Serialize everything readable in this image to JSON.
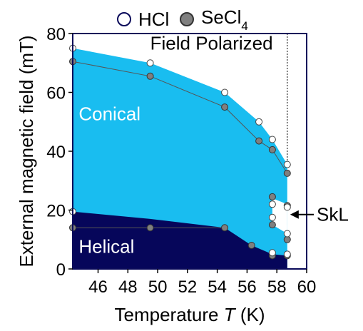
{
  "chart_data": {
    "type": "scatter",
    "xlabel": "Temperature T (K)",
    "ylabel": "External magnetic field (mT)",
    "xlabel_parts": {
      "pre": "Temperature ",
      "var": "T",
      "post": " (K)"
    },
    "xlim": [
      44.3,
      60
    ],
    "ylim": [
      0,
      80
    ],
    "xticks": [
      "46",
      "48",
      "50",
      "52",
      "54",
      "56",
      "58",
      "60"
    ],
    "xtick_values": [
      46,
      48,
      50,
      52,
      54,
      56,
      58,
      60
    ],
    "yticks": [
      "0",
      "20",
      "40",
      "60",
      "80"
    ],
    "ytick_values": [
      0,
      20,
      40,
      60,
      80
    ],
    "legend": {
      "items": [
        {
          "name": "HCl",
          "color": "#ffffff"
        },
        {
          "name": "SeCl4",
          "color": "#808080"
        }
      ],
      "placement": "top"
    },
    "legend_text": {
      "hcl": "HCl",
      "secl_base": "SeCl",
      "secl_sub": "4"
    },
    "region_labels": {
      "field_polarized": "Field Polarized",
      "conical": "Conical",
      "helical": "Helical",
      "skl": "SkL"
    },
    "colors": {
      "conical": "#19bdf0",
      "helical": "#06065a",
      "hcl_marker": "#ffffff",
      "secl4_marker": "#808080",
      "frame": "#0a0a5a"
    },
    "series": [
      {
        "name": "HCl",
        "points": [
          {
            "x": 44.3,
            "y": 75
          },
          {
            "x": 49.5,
            "y": 70
          },
          {
            "x": 54.5,
            "y": 60
          },
          {
            "x": 56.8,
            "y": 50
          },
          {
            "x": 57.7,
            "y": 44
          },
          {
            "x": 58.7,
            "y": 35.5
          },
          {
            "x": 57.7,
            "y": 22
          },
          {
            "x": 57.7,
            "y": 17.5
          },
          {
            "x": 58.7,
            "y": 21
          },
          {
            "x": 58.7,
            "y": 12
          },
          {
            "x": 57.7,
            "y": 5.5
          },
          {
            "x": 58.7,
            "y": 5
          },
          {
            "x": 44.3,
            "y": 19.5
          }
        ]
      },
      {
        "name": "SeCl4",
        "points": [
          {
            "x": 44.3,
            "y": 70.5
          },
          {
            "x": 49.5,
            "y": 65.5
          },
          {
            "x": 54.5,
            "y": 55
          },
          {
            "x": 56.8,
            "y": 43.5
          },
          {
            "x": 57.7,
            "y": 40.5
          },
          {
            "x": 58.7,
            "y": 32.5
          },
          {
            "x": 57.7,
            "y": 24.5
          },
          {
            "x": 57.7,
            "y": 15
          },
          {
            "x": 58.7,
            "y": 21.5
          },
          {
            "x": 58.7,
            "y": 10
          },
          {
            "x": 57.7,
            "y": 4.5
          },
          {
            "x": 58.7,
            "y": 4.5
          },
          {
            "x": 44.3,
            "y": 14
          },
          {
            "x": 49.5,
            "y": 14
          },
          {
            "x": 54.5,
            "y": 14
          },
          {
            "x": 56.3,
            "y": 8
          }
        ]
      }
    ],
    "boundaries": {
      "conical_upper_hcl": [
        [
          44.3,
          75
        ],
        [
          49.5,
          70
        ],
        [
          54.5,
          60
        ],
        [
          56.8,
          50
        ],
        [
          57.7,
          44
        ],
        [
          58.7,
          35.5
        ]
      ],
      "conical_upper_secl4": [
        [
          44.3,
          70.5
        ],
        [
          49.5,
          65.5
        ],
        [
          54.5,
          55
        ],
        [
          56.8,
          43.5
        ],
        [
          57.7,
          40.5
        ],
        [
          58.7,
          32.5
        ]
      ],
      "helical_upper": [
        [
          44.3,
          19.5
        ],
        [
          49.5,
          17
        ],
        [
          54.5,
          14
        ],
        [
          56.3,
          8
        ],
        [
          57.7,
          5
        ],
        [
          58.7,
          4.5
        ]
      ],
      "skl_region": [
        [
          57.7,
          24
        ],
        [
          58.7,
          22
        ],
        [
          58.7,
          12
        ],
        [
          57.7,
          15
        ]
      ],
      "critical_temperature": 58.7
    }
  }
}
